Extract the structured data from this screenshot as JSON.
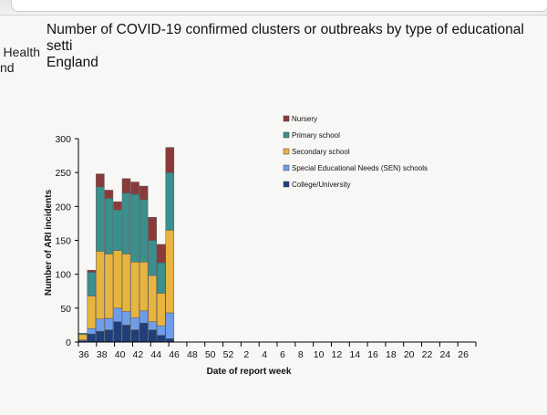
{
  "header": {
    "org_line1": "Health",
    "org_line2": "nd"
  },
  "chart_data": {
    "type": "bar",
    "stacked": true,
    "title": "Number of COVID-19 confirmed clusters or outbreaks by type of educational setti\nEngland",
    "xlabel": "Date of report week",
    "ylabel": "Number of ARI incidents",
    "ylim": [
      0,
      300
    ],
    "yticks": [
      0,
      50,
      100,
      150,
      200,
      250,
      300
    ],
    "xticks": [
      "36",
      "38",
      "40",
      "42",
      "44",
      "46",
      "48",
      "50",
      "52",
      "2",
      "4",
      "6",
      "8",
      "10",
      "12",
      "14",
      "16",
      "18",
      "20",
      "22",
      "24",
      "26"
    ],
    "weeks": [
      "36",
      "37",
      "38",
      "39",
      "40",
      "41",
      "42",
      "43",
      "44",
      "45",
      "46"
    ],
    "grid": false,
    "legend_position": "top-right",
    "series": [
      {
        "name": "College/University",
        "color": "#1f3e7a",
        "values": [
          2,
          12,
          16,
          18,
          30,
          25,
          18,
          28,
          18,
          10,
          5
        ]
      },
      {
        "name": "Special Educational Needs (SEN) schools",
        "color": "#6d9eeb",
        "values": [
          1,
          8,
          18,
          17,
          20,
          20,
          18,
          18,
          12,
          14,
          38
        ]
      },
      {
        "name": "Secondary school",
        "color": "#e8b440",
        "values": [
          8,
          48,
          100,
          95,
          85,
          85,
          82,
          72,
          68,
          48,
          122
        ]
      },
      {
        "name": "Primary school",
        "color": "#3b8f8c",
        "values": [
          2,
          35,
          95,
          82,
          60,
          90,
          100,
          92,
          52,
          45,
          85
        ]
      },
      {
        "name": "Nursery",
        "color": "#8b3a3a",
        "values": [
          0,
          3,
          19,
          12,
          12,
          21,
          18,
          20,
          34,
          27,
          37
        ]
      }
    ]
  }
}
